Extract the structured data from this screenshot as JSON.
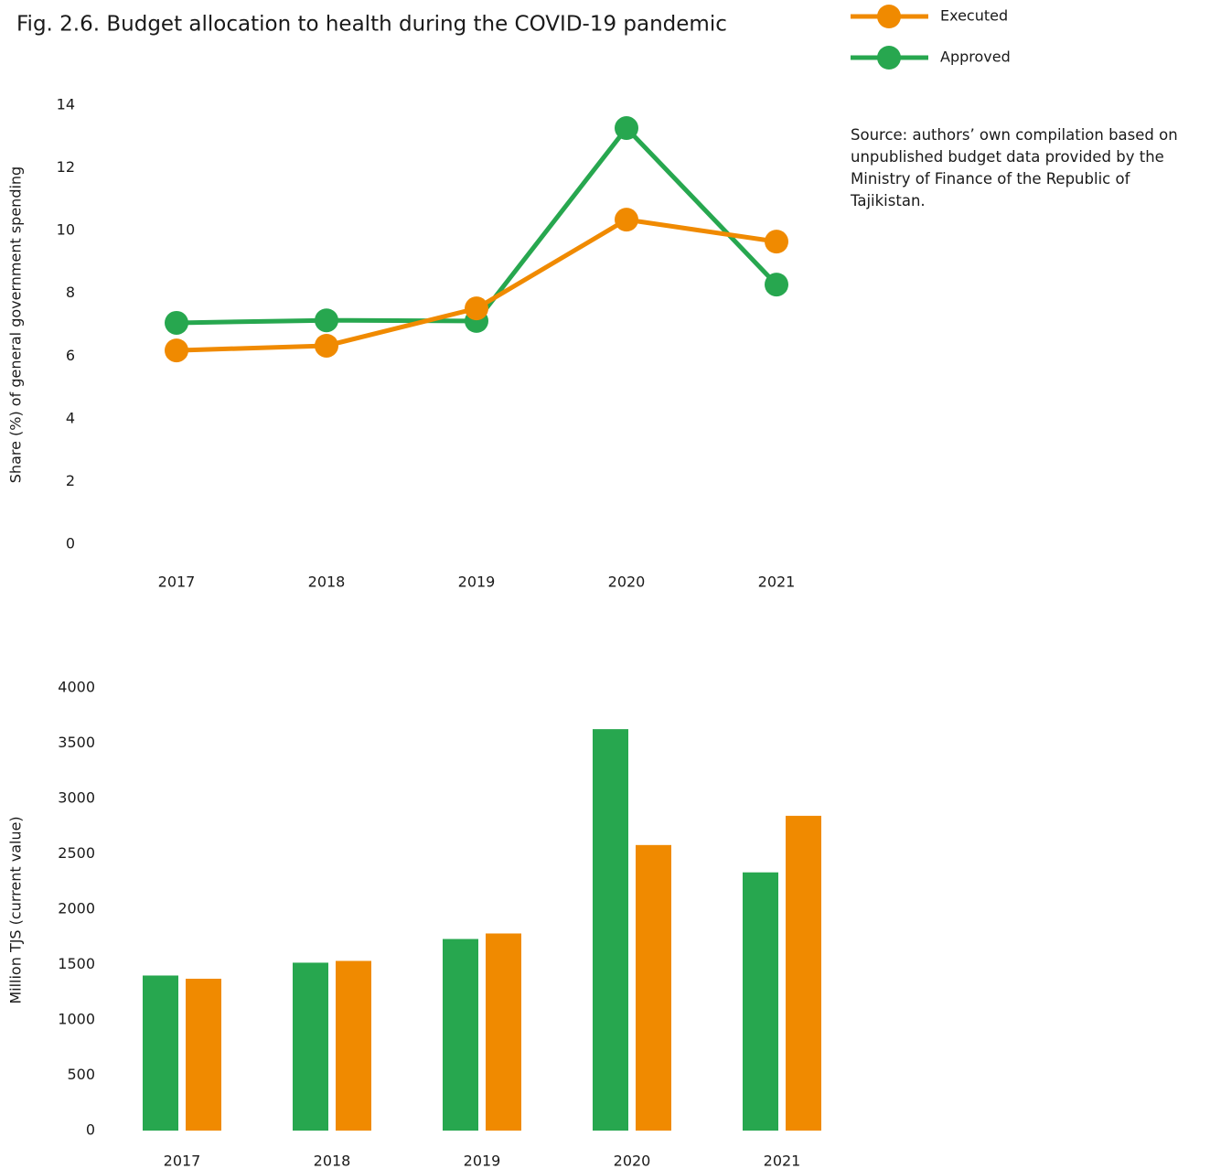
{
  "chart_data": [
    {
      "type": "line",
      "title": "Fig. 2.6. Budget allocation to health during the COVID-19 pandemic",
      "source": "Source: authors’ own compilation based on unpublished budget data provided by the Ministry of Finance of the Republic of Tajikistan.",
      "y_label": "Share (%) of general government spending",
      "categories": [
        "2017",
        "2018",
        "2019",
        "2020",
        "2021"
      ],
      "series": [
        {
          "name": "Executed",
          "color": "#f08a00",
          "values": [
            6.18,
            6.33,
            7.52,
            10.35,
            9.65
          ]
        },
        {
          "name": "Approved",
          "color": "#27a74f",
          "values": [
            7.06,
            7.14,
            7.12,
            13.27,
            8.28
          ]
        }
      ],
      "ylim": [
        0,
        14
      ],
      "yticks": [
        0,
        2,
        4,
        6,
        8,
        10,
        12,
        14
      ],
      "grid": false
    },
    {
      "type": "bar",
      "y_label": "Million TJS (current value)",
      "categories": [
        "2017",
        "2018",
        "2019",
        "2020",
        "2021"
      ],
      "series": [
        {
          "color": "#27a74f",
          "values": [
            1401,
            1517,
            1731,
            3627,
            2333
          ]
        },
        {
          "color": "#f08a00",
          "values": [
            1372,
            1533,
            1781,
            2580,
            2844
          ]
        }
      ],
      "ylim": [
        0,
        4000
      ],
      "yticks": [
        0,
        500,
        1000,
        1500,
        2000,
        2500,
        3000,
        3500,
        4000
      ],
      "grid": false
    }
  ]
}
